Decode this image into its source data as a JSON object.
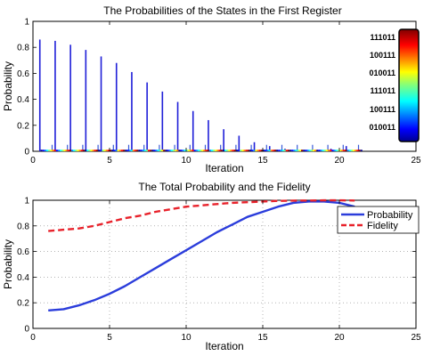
{
  "chart_data": [
    {
      "type": "bar",
      "title": "The Probabilities of the States in the First Register",
      "xlabel": "Iteration",
      "ylabel": "Probability",
      "xlim": [
        0,
        25
      ],
      "ylim": [
        0,
        1
      ],
      "xticks": [
        "0",
        "5",
        "10",
        "15",
        "20",
        "25"
      ],
      "yticks": [
        "0",
        "0.2",
        "0.4",
        "0.6",
        "0.8",
        "1"
      ],
      "grid": false,
      "colorbar_labels": [
        "111011",
        "100111",
        "010011",
        "111011",
        "100111",
        "010011"
      ],
      "colormap": "jet",
      "bar_color": "#1f1fd8",
      "series": [
        {
          "iteration": [
            1,
            2,
            3,
            4,
            5,
            6,
            7,
            8,
            9,
            10,
            11,
            12,
            13,
            14,
            15,
            16,
            17,
            18,
            19,
            20,
            21
          ],
          "values": [
            0.86,
            0.85,
            0.82,
            0.78,
            0.73,
            0.68,
            0.61,
            0.53,
            0.46,
            0.38,
            0.31,
            0.24,
            0.17,
            0.12,
            0.07,
            0.04,
            0.02,
            0.01,
            0.01,
            0.02,
            0.04
          ]
        }
      ]
    },
    {
      "type": "line",
      "title": "The Total Probability and the Fidelity",
      "xlabel": "Iteration",
      "ylabel": "Probability",
      "xlim": [
        0,
        25
      ],
      "ylim": [
        0,
        1
      ],
      "xticks": [
        "0",
        "5",
        "10",
        "15",
        "20",
        "25"
      ],
      "yticks": [
        "0",
        "0.2",
        "0.4",
        "0.6",
        "0.8",
        "1"
      ],
      "grid": true,
      "legend_position": "top-right",
      "x": [
        1,
        2,
        3,
        4,
        5,
        6,
        7,
        8,
        9,
        10,
        11,
        12,
        13,
        14,
        15,
        16,
        17,
        18,
        19,
        20,
        21
      ],
      "series": [
        {
          "name": "Probability",
          "color": "#2b3ddb",
          "dash": "solid",
          "values": [
            0.14,
            0.15,
            0.18,
            0.22,
            0.27,
            0.33,
            0.4,
            0.47,
            0.54,
            0.61,
            0.68,
            0.75,
            0.81,
            0.87,
            0.91,
            0.95,
            0.98,
            0.99,
            0.99,
            0.98,
            0.95
          ]
        },
        {
          "name": "Fidelity",
          "color": "#e8222b",
          "dash": "dashed",
          "values": [
            0.76,
            0.77,
            0.78,
            0.8,
            0.83,
            0.86,
            0.88,
            0.91,
            0.93,
            0.95,
            0.96,
            0.97,
            0.98,
            0.985,
            0.99,
            0.995,
            0.997,
            0.998,
            0.999,
            0.999,
            0.998
          ]
        }
      ]
    }
  ]
}
